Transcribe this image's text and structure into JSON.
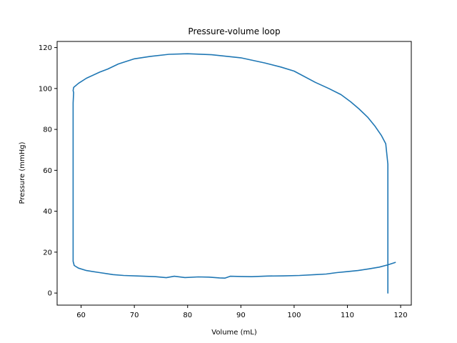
{
  "chart_data": {
    "type": "line",
    "title": "Pressure-volume loop",
    "xlabel": "Volume (mL)",
    "ylabel": "Pressure (mmHg)",
    "xlim": [
      55.5,
      122
    ],
    "ylim": [
      -5.9,
      123
    ],
    "xticks": [
      60,
      70,
      80,
      90,
      100,
      110,
      120
    ],
    "yticks": [
      0,
      20,
      40,
      60,
      80,
      100,
      120
    ],
    "grid": false,
    "series": [
      {
        "color": "#1f77b4",
        "points": [
          [
            117.6,
            0
          ],
          [
            117.6,
            8
          ],
          [
            117.6,
            63
          ],
          [
            117.4,
            68
          ],
          [
            117.2,
            73
          ],
          [
            116.4,
            77
          ],
          [
            115.2,
            81.5
          ],
          [
            113.8,
            86
          ],
          [
            112.2,
            90
          ],
          [
            110.6,
            93.5
          ],
          [
            108.8,
            97
          ],
          [
            106.5,
            100
          ],
          [
            104.0,
            103
          ],
          [
            100.0,
            108.5
          ],
          [
            97.5,
            110.5
          ],
          [
            94.5,
            112.5
          ],
          [
            90.0,
            115
          ],
          [
            84.5,
            116.5
          ],
          [
            80.0,
            117
          ],
          [
            76.5,
            116.7
          ],
          [
            73.0,
            115.7
          ],
          [
            70.0,
            114.5
          ],
          [
            67.0,
            112
          ],
          [
            65.0,
            109.5
          ],
          [
            63.5,
            108
          ],
          [
            61.0,
            105
          ],
          [
            59.5,
            102.5
          ],
          [
            58.6,
            100.5
          ],
          [
            58.5,
            99
          ],
          [
            58.6,
            98
          ],
          [
            58.5,
            93
          ],
          [
            58.5,
            15.5
          ],
          [
            58.7,
            13.5
          ],
          [
            59.5,
            12.2
          ],
          [
            61.0,
            11
          ],
          [
            63.5,
            10
          ],
          [
            66.0,
            9
          ],
          [
            68.0,
            8.6
          ],
          [
            71.0,
            8.3
          ],
          [
            74.0,
            8
          ],
          [
            76.0,
            7.5
          ],
          [
            77.5,
            8.2
          ],
          [
            79.5,
            7.6
          ],
          [
            82.0,
            7.9
          ],
          [
            84.0,
            7.8
          ],
          [
            86.0,
            7.4
          ],
          [
            87.0,
            7.3
          ],
          [
            88.0,
            8.2
          ],
          [
            90.0,
            8.1
          ],
          [
            92.0,
            8
          ],
          [
            95.0,
            8.3
          ],
          [
            98.0,
            8.4
          ],
          [
            101.0,
            8.6
          ],
          [
            104.0,
            9
          ],
          [
            106.0,
            9.3
          ],
          [
            108.0,
            10
          ],
          [
            110.0,
            10.5
          ],
          [
            112.0,
            11
          ],
          [
            114.0,
            11.8
          ],
          [
            116.0,
            12.7
          ],
          [
            117.6,
            13.8
          ],
          [
            119.0,
            15
          ]
        ]
      }
    ]
  }
}
